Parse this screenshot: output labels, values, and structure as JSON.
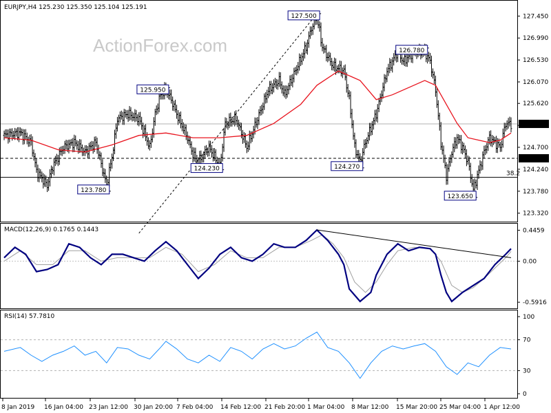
{
  "chart_data": [
    {
      "type": "candlestick",
      "panel": "price",
      "info": "EURJPY,H4  125.230 125.350 125.104 125.191",
      "watermark": "ActionForex.com",
      "ylim": [
        123.2,
        127.7
      ],
      "y_ticks": [
        "127.450",
        "126.990",
        "126.530",
        "126.070",
        "125.620",
        "125.160",
        "124.700",
        "124.240",
        "123.780",
        "123.320"
      ],
      "current_price": "125.191",
      "line_level": "124.470",
      "fib_label": "38.2",
      "fib_value": 124.07,
      "ma_color": "#e8141e",
      "swing_labels": [
        {
          "text": "125.950",
          "value": 125.95,
          "bar": 30
        },
        {
          "text": "123.780",
          "value": 123.78,
          "bar": 19
        },
        {
          "text": "127.500",
          "value": 127.5,
          "bar": 58
        },
        {
          "text": "124.230",
          "value": 124.23,
          "bar": 40
        },
        {
          "text": "126.780",
          "value": 126.78,
          "bar": 78
        },
        {
          "text": "124.270",
          "value": 124.27,
          "bar": 66
        },
        {
          "text": "123.650",
          "value": 123.65,
          "bar": 87
        }
      ],
      "close_path": [
        [
          0,
          124.95
        ],
        [
          3,
          125.0
        ],
        [
          5,
          124.8
        ],
        [
          6,
          124.2
        ],
        [
          8,
          123.9
        ],
        [
          9,
          124.3
        ],
        [
          11,
          124.7
        ],
        [
          13,
          124.8
        ],
        [
          15,
          124.6
        ],
        [
          17,
          124.8
        ],
        [
          19,
          123.9
        ],
        [
          20,
          124.5
        ],
        [
          21,
          125.3
        ],
        [
          23,
          125.4
        ],
        [
          25,
          125.3
        ],
        [
          27,
          124.7
        ],
        [
          28,
          125.4
        ],
        [
          29,
          125.8
        ],
        [
          30,
          125.9
        ],
        [
          31,
          125.7
        ],
        [
          32,
          125.4
        ],
        [
          34,
          124.9
        ],
        [
          35,
          124.55
        ],
        [
          36,
          124.4
        ],
        [
          38,
          124.7
        ],
        [
          40,
          124.3
        ],
        [
          41,
          125.2
        ],
        [
          43,
          125.3
        ],
        [
          45,
          124.7
        ],
        [
          47,
          125.3
        ],
        [
          49,
          125.9
        ],
        [
          51,
          126.1
        ],
        [
          52,
          125.8
        ],
        [
          54,
          126.3
        ],
        [
          56,
          126.8
        ],
        [
          57,
          127.2
        ],
        [
          58,
          127.45
        ],
        [
          59,
          126.8
        ],
        [
          60,
          126.6
        ],
        [
          61,
          126.4
        ],
        [
          63,
          126.3
        ],
        [
          64,
          125.7
        ],
        [
          65,
          124.7
        ],
        [
          66,
          124.4
        ],
        [
          67,
          124.8
        ],
        [
          69,
          125.4
        ],
        [
          71,
          126.3
        ],
        [
          73,
          126.7
        ],
        [
          74,
          126.5
        ],
        [
          76,
          126.7
        ],
        [
          78,
          126.7
        ],
        [
          79,
          126.5
        ],
        [
          80,
          125.9
        ],
        [
          81,
          124.8
        ],
        [
          82,
          124.1
        ],
        [
          83,
          124.6
        ],
        [
          84,
          124.9
        ],
        [
          85,
          124.7
        ],
        [
          86,
          124.4
        ],
        [
          87,
          123.8
        ],
        [
          88,
          124.2
        ],
        [
          89,
          124.6
        ],
        [
          90,
          124.9
        ],
        [
          92,
          124.7
        ],
        [
          93,
          125.2
        ],
        [
          94,
          125.19
        ]
      ],
      "moving_average": [
        [
          0,
          124.9
        ],
        [
          5,
          124.85
        ],
        [
          10,
          124.65
        ],
        [
          15,
          124.6
        ],
        [
          20,
          124.75
        ],
        [
          25,
          124.95
        ],
        [
          30,
          125.0
        ],
        [
          35,
          124.9
        ],
        [
          40,
          124.9
        ],
        [
          45,
          124.95
        ],
        [
          50,
          125.2
        ],
        [
          55,
          125.6
        ],
        [
          58,
          126.0
        ],
        [
          62,
          126.3
        ],
        [
          66,
          126.1
        ],
        [
          69,
          125.7
        ],
        [
          72,
          125.8
        ],
        [
          75,
          125.95
        ],
        [
          78,
          126.1
        ],
        [
          80,
          126.0
        ],
        [
          82,
          125.6
        ],
        [
          84,
          125.2
        ],
        [
          86,
          124.9
        ],
        [
          88,
          124.85
        ],
        [
          90,
          124.8
        ],
        [
          92,
          124.85
        ],
        [
          94,
          125.0
        ]
      ],
      "trendline": {
        "from": [
          25,
          122.9
        ],
        "to": [
          58,
          127.5
        ]
      },
      "x_ticks": [
        "8 Jan 2019",
        "16 Jan 04:00",
        "23 Jan 12:00",
        "30 Jan 20:00",
        "7 Feb 04:00",
        "14 Feb 12:00",
        "21 Feb 20:00",
        "1 Mar 04:00",
        "8 Mar 12:00",
        "15 Mar 20:00",
        "25 Mar 04:00",
        "1 Apr 12:00"
      ]
    },
    {
      "type": "line",
      "panel": "macd",
      "info": "MACD(12,26,9) 0.1765 0.1443",
      "ylim": [
        -0.66,
        0.51
      ],
      "y_ticks": [
        "0.4459",
        "0.00",
        "-0.5916"
      ],
      "macd_color": "#000080",
      "signal_color": "#a0a0a0",
      "macd": [
        [
          0,
          0.05
        ],
        [
          2,
          0.2
        ],
        [
          4,
          0.1
        ],
        [
          6,
          -0.15
        ],
        [
          8,
          -0.12
        ],
        [
          10,
          -0.05
        ],
        [
          12,
          0.25
        ],
        [
          14,
          0.2
        ],
        [
          16,
          0.05
        ],
        [
          18,
          -0.05
        ],
        [
          20,
          0.1
        ],
        [
          22,
          0.1
        ],
        [
          24,
          0.05
        ],
        [
          26,
          0.0
        ],
        [
          28,
          0.15
        ],
        [
          30,
          0.28
        ],
        [
          32,
          0.15
        ],
        [
          34,
          -0.05
        ],
        [
          36,
          -0.25
        ],
        [
          38,
          -0.1
        ],
        [
          40,
          0.1
        ],
        [
          42,
          0.2
        ],
        [
          44,
          0.05
        ],
        [
          46,
          0.0
        ],
        [
          48,
          0.1
        ],
        [
          50,
          0.25
        ],
        [
          52,
          0.2
        ],
        [
          54,
          0.2
        ],
        [
          56,
          0.3
        ],
        [
          58,
          0.45
        ],
        [
          60,
          0.3
        ],
        [
          62,
          0.1
        ],
        [
          63,
          -0.05
        ],
        [
          64,
          -0.4
        ],
        [
          66,
          -0.58
        ],
        [
          68,
          -0.45
        ],
        [
          69,
          -0.2
        ],
        [
          71,
          0.1
        ],
        [
          73,
          0.25
        ],
        [
          75,
          0.15
        ],
        [
          77,
          0.2
        ],
        [
          79,
          0.18
        ],
        [
          80,
          0.1
        ],
        [
          81,
          -0.2
        ],
        [
          82,
          -0.45
        ],
        [
          83,
          -0.58
        ],
        [
          85,
          -0.45
        ],
        [
          87,
          -0.35
        ],
        [
          89,
          -0.25
        ],
        [
          91,
          -0.05
        ],
        [
          93,
          0.1
        ],
        [
          94,
          0.18
        ]
      ],
      "signal": [
        [
          0,
          0.0
        ],
        [
          3,
          0.15
        ],
        [
          6,
          -0.05
        ],
        [
          9,
          -0.05
        ],
        [
          12,
          0.15
        ],
        [
          15,
          0.15
        ],
        [
          18,
          0.0
        ],
        [
          21,
          0.05
        ],
        [
          24,
          0.05
        ],
        [
          27,
          0.05
        ],
        [
          30,
          0.2
        ],
        [
          33,
          0.1
        ],
        [
          36,
          -0.15
        ],
        [
          39,
          -0.05
        ],
        [
          42,
          0.15
        ],
        [
          45,
          0.05
        ],
        [
          48,
          0.05
        ],
        [
          51,
          0.2
        ],
        [
          54,
          0.2
        ],
        [
          57,
          0.3
        ],
        [
          59,
          0.38
        ],
        [
          61,
          0.25
        ],
        [
          63,
          0.05
        ],
        [
          65,
          -0.3
        ],
        [
          67,
          -0.45
        ],
        [
          69,
          -0.3
        ],
        [
          71,
          -0.05
        ],
        [
          73,
          0.15
        ],
        [
          76,
          0.2
        ],
        [
          79,
          0.18
        ],
        [
          81,
          0.0
        ],
        [
          83,
          -0.35
        ],
        [
          85,
          -0.45
        ],
        [
          87,
          -0.38
        ],
        [
          89,
          -0.25
        ],
        [
          91,
          -0.1
        ],
        [
          93,
          0.05
        ],
        [
          94,
          0.14
        ]
      ],
      "trendline": {
        "from": [
          58,
          0.45
        ],
        "to": [
          94,
          0.05
        ]
      }
    },
    {
      "type": "line",
      "panel": "rsi",
      "info": "RSI(14) 57.7810",
      "ylim": [
        0,
        100
      ],
      "y_ticks": [
        "100",
        "70",
        "30",
        "0"
      ],
      "y_tick_values": [
        100,
        70,
        30,
        0
      ],
      "levels": [
        70,
        30
      ],
      "rsi_color": "#1e90ff",
      "rsi": [
        [
          0,
          55
        ],
        [
          3,
          60
        ],
        [
          5,
          50
        ],
        [
          7,
          42
        ],
        [
          9,
          50
        ],
        [
          11,
          55
        ],
        [
          13,
          62
        ],
        [
          15,
          50
        ],
        [
          17,
          55
        ],
        [
          19,
          40
        ],
        [
          21,
          60
        ],
        [
          23,
          58
        ],
        [
          25,
          50
        ],
        [
          27,
          45
        ],
        [
          29,
          60
        ],
        [
          30,
          68
        ],
        [
          32,
          58
        ],
        [
          34,
          45
        ],
        [
          36,
          40
        ],
        [
          38,
          50
        ],
        [
          40,
          42
        ],
        [
          42,
          60
        ],
        [
          44,
          55
        ],
        [
          46,
          45
        ],
        [
          48,
          58
        ],
        [
          50,
          65
        ],
        [
          52,
          58
        ],
        [
          54,
          62
        ],
        [
          56,
          72
        ],
        [
          58,
          80
        ],
        [
          60,
          60
        ],
        [
          62,
          55
        ],
        [
          64,
          40
        ],
        [
          66,
          20
        ],
        [
          68,
          40
        ],
        [
          70,
          55
        ],
        [
          72,
          62
        ],
        [
          74,
          58
        ],
        [
          76,
          62
        ],
        [
          78,
          65
        ],
        [
          80,
          55
        ],
        [
          82,
          35
        ],
        [
          84,
          25
        ],
        [
          86,
          40
        ],
        [
          88,
          35
        ],
        [
          90,
          50
        ],
        [
          92,
          60
        ],
        [
          94,
          58
        ]
      ]
    }
  ]
}
